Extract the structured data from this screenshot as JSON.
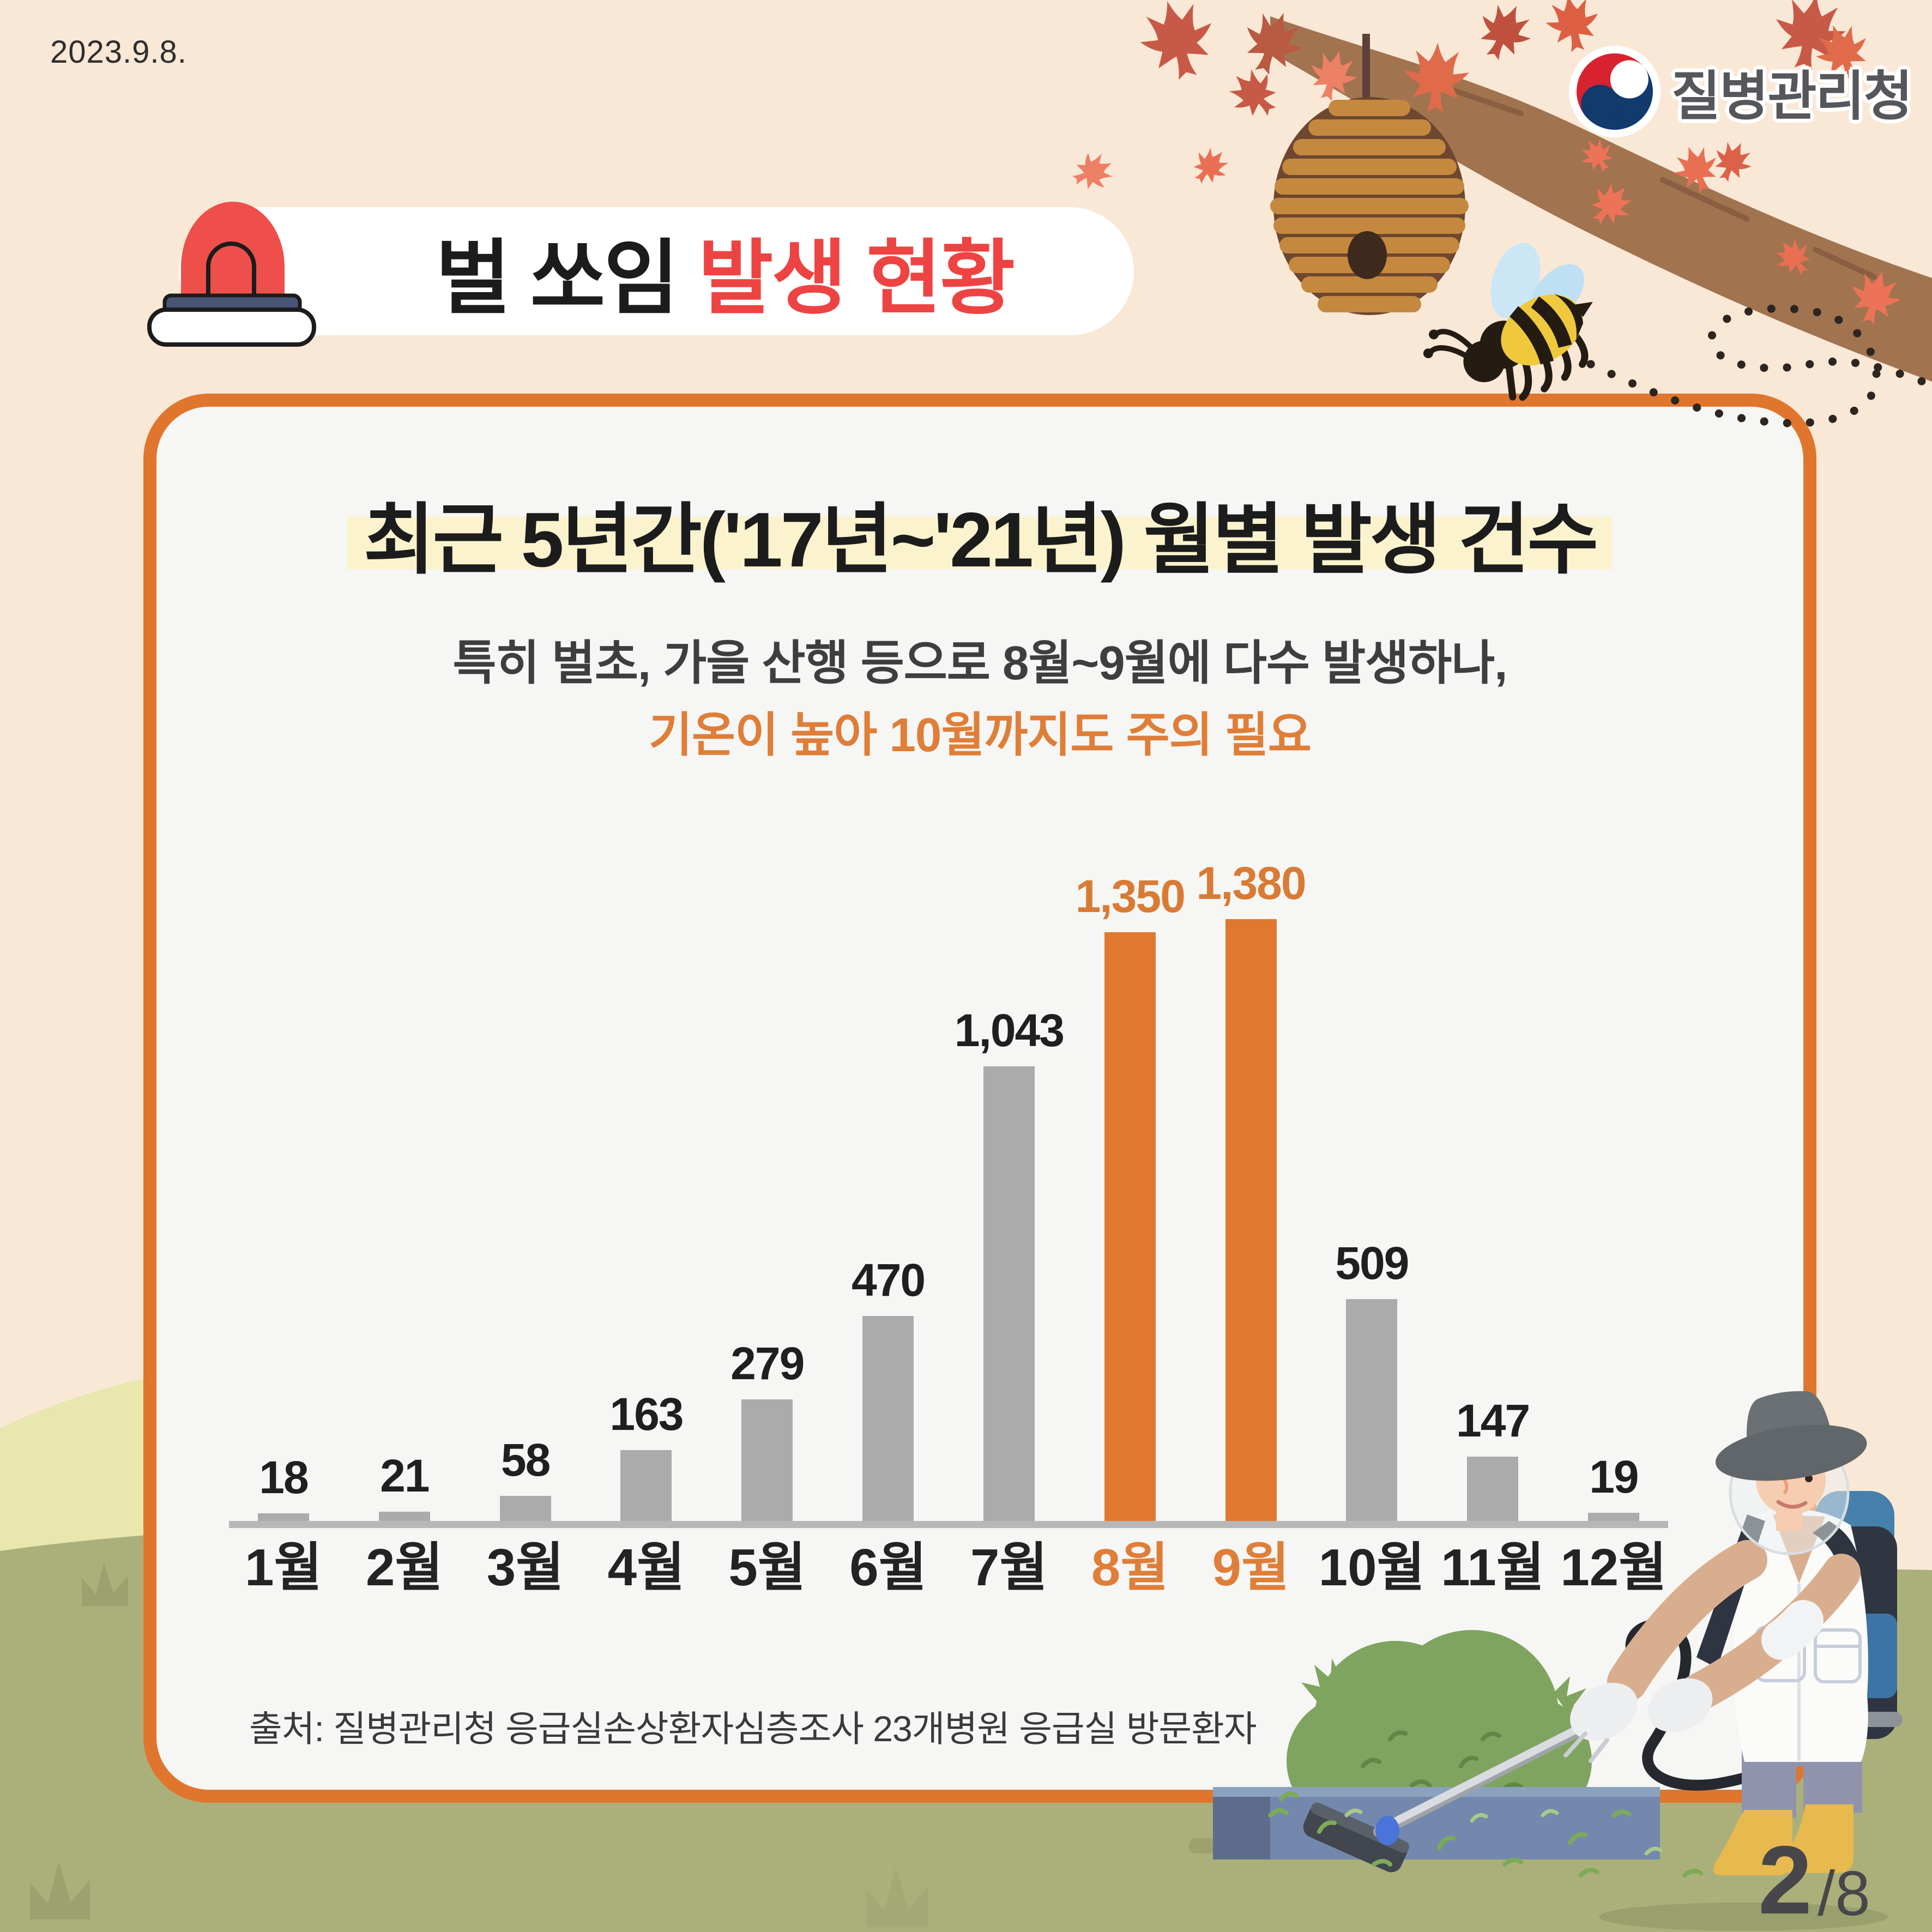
{
  "page": {
    "date": "2023.9.8.",
    "page_number": "2",
    "page_total": "/8",
    "background_color": "#FAE8D7"
  },
  "logo": {
    "agency_name": "질병관리청"
  },
  "header": {
    "title_black": "벌 쏘임",
    "title_red": "발생 현황"
  },
  "card": {
    "title": "최근 5년간('17년~'21년) 월별 발생 건수",
    "subtitle_line1": "특히  벌초, 가을 산행 등으로 8월~9월에 다수 발생하나,",
    "subtitle_line2": "기온이 높아 10월까지도 주의 필요",
    "source": "출처: 질병관리청 응급실손상환자심층조사 23개병원 응급실 방문환자",
    "border_color": "#E0762E",
    "title_highlight_color": "#FAF3CD"
  },
  "chart_data": {
    "type": "bar",
    "title": "최근 5년간('17년~'21년) 월별 발생 건수",
    "categories": [
      "1월",
      "2월",
      "3월",
      "4월",
      "5월",
      "6월",
      "7월",
      "8월",
      "9월",
      "10월",
      "11월",
      "12월"
    ],
    "values": [
      18,
      21,
      58,
      163,
      279,
      470,
      1043,
      1350,
      1380,
      509,
      147,
      19
    ],
    "value_labels": [
      "18",
      "21",
      "58",
      "163",
      "279",
      "470",
      "1,043",
      "1,350",
      "1,380",
      "509",
      "147",
      "19"
    ],
    "highlight_months": [
      "8월",
      "9월"
    ],
    "bar_color": "#ABABAB",
    "highlight_color": "#E0792F",
    "value_label_color": "#1F1F1F",
    "highlight_value_label_color": "#D97B35",
    "axis_line_color": "#B7B7B7",
    "xlabel": "",
    "ylabel": "",
    "ylim": [
      0,
      1500
    ],
    "grid": "off",
    "legend": "none"
  },
  "colors": {
    "accent_orange": "#E0762E",
    "title_red": "#EE4343",
    "cream_background": "#FAE8D7",
    "card_background": "#F6F6F4",
    "hill_light": "#E7E7AE",
    "hill_dark": "#ABB07B"
  }
}
